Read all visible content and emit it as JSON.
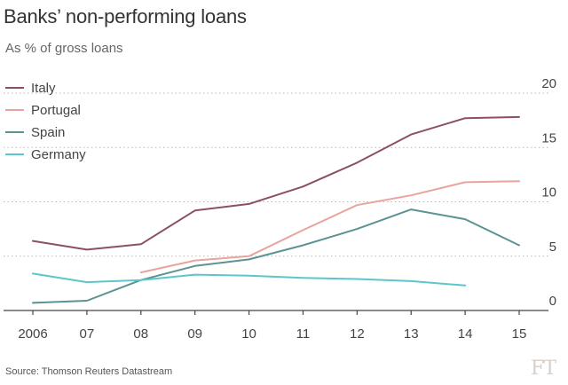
{
  "header": {
    "title": "Banks’ non-performing loans",
    "subtitle": "As % of gross loans"
  },
  "footer": {
    "source": "Source: Thomson Reuters Datastream",
    "logo": "FT"
  },
  "colors": {
    "italy": "#8c4f66",
    "portugal": "#e8a49e",
    "spain": "#5b9393",
    "germany": "#5cc6cc",
    "grid": "#b8b8b8",
    "axis": "#444444"
  },
  "chart_data": {
    "type": "line",
    "title": "Banks’ non-performing loans",
    "subtitle": "As % of gross loans",
    "xlabel": "",
    "ylabel": "As % of gross loans",
    "x": [
      2006,
      2007,
      2008,
      2009,
      2010,
      2011,
      2012,
      2013,
      2014,
      2015
    ],
    "x_tick_labels": [
      "2006",
      "07",
      "08",
      "09",
      "10",
      "11",
      "12",
      "13",
      "14",
      "15"
    ],
    "y_ticks": [
      0,
      5,
      10,
      15,
      20
    ],
    "y_tick_labels": [
      "0",
      "5",
      "10",
      "15",
      "20"
    ],
    "ylim": [
      0,
      20
    ],
    "y_axis_side": "right",
    "grid": "horizontal dotted",
    "legend_position": "top-left",
    "series": [
      {
        "name": "Italy",
        "key": "italy",
        "x": [
          2006,
          2007,
          2008,
          2009,
          2010,
          2011,
          2012,
          2013,
          2014,
          2015
        ],
        "values": [
          6.4,
          5.6,
          6.1,
          9.2,
          9.8,
          11.4,
          13.6,
          16.2,
          17.7,
          17.8
        ]
      },
      {
        "name": "Portugal",
        "key": "portugal",
        "x": [
          2008,
          2009,
          2010,
          2011,
          2012,
          2013,
          2014,
          2015
        ],
        "values": [
          3.5,
          4.6,
          5.0,
          7.4,
          9.7,
          10.6,
          11.8,
          11.9
        ]
      },
      {
        "name": "Spain",
        "key": "spain",
        "x": [
          2006,
          2007,
          2008,
          2009,
          2010,
          2011,
          2012,
          2013,
          2014,
          2015
        ],
        "values": [
          0.7,
          0.9,
          2.8,
          4.1,
          4.7,
          6.0,
          7.5,
          9.3,
          8.4,
          6.0
        ]
      },
      {
        "name": "Germany",
        "key": "germany",
        "x": [
          2006,
          2007,
          2008,
          2009,
          2010,
          2011,
          2012,
          2013,
          2014
        ],
        "values": [
          3.4,
          2.6,
          2.8,
          3.3,
          3.2,
          3.0,
          2.9,
          2.7,
          2.3
        ]
      }
    ]
  }
}
